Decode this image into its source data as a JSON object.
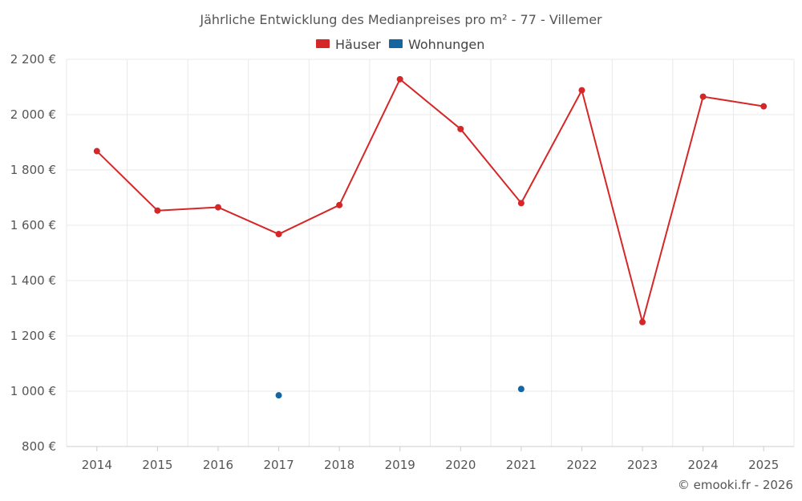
{
  "chart_data": {
    "type": "line",
    "title": "Jährliche Entwicklung des Medianpreises pro m² - 77 - Villemer",
    "categories": [
      "2014",
      "2015",
      "2016",
      "2017",
      "2018",
      "2019",
      "2020",
      "2021",
      "2022",
      "2023",
      "2024",
      "2025"
    ],
    "y_ticks": [
      "800 €",
      "1 000 €",
      "1 200 €",
      "1 400 €",
      "1 600 €",
      "1 800 €",
      "2 000 €",
      "2 200 €"
    ],
    "ylim": [
      800,
      2200
    ],
    "xlabel": "",
    "ylabel": "",
    "legend_position": "top-center",
    "series": [
      {
        "name": "Häuser",
        "color": "#d62728",
        "values": [
          1868,
          1653,
          1665,
          1568,
          1673,
          2128,
          1948,
          1680,
          2088,
          1250,
          2065,
          2030
        ]
      },
      {
        "name": "Wohnungen",
        "color": "#1565a0",
        "values": [
          null,
          null,
          null,
          985,
          null,
          null,
          null,
          1008,
          null,
          null,
          null,
          null
        ]
      }
    ]
  },
  "credit": "© emooki.fr - 2026"
}
